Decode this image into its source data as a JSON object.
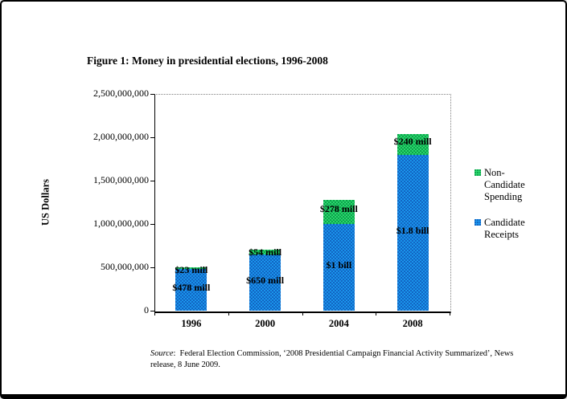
{
  "figure": {
    "title": "Figure 1: Money in presidential elections, 1996-2008"
  },
  "chart_data": {
    "type": "bar",
    "stacked": true,
    "title": "Figure 1: Money in presidential elections, 1996-2008",
    "xlabel": "",
    "ylabel": "US Dollars",
    "categories": [
      "1996",
      "2000",
      "2004",
      "2008"
    ],
    "series": [
      {
        "name": "Candidate Receipts",
        "color": "#1b9af0",
        "pattern_dot_color": "#1161c0",
        "values": [
          478000000,
          650000000,
          1000000000,
          1800000000
        ],
        "data_labels": [
          "$478 mill",
          "$650 mill",
          "$1 bill",
          "$1.8 bill"
        ]
      },
      {
        "name": "Non-Candidate Spending",
        "color": "#2edd70",
        "pattern_dot_color": "#0b9e4a",
        "values": [
          23000000,
          54000000,
          278000000,
          240000000
        ],
        "data_labels": [
          "$23 mill",
          "$54 mill",
          "$278 mill",
          "$240 mill"
        ]
      }
    ],
    "ylim": [
      0,
      2500000000
    ],
    "yticks": [
      "0",
      "500,000,000",
      "1,000,000,000",
      "1,500,000,000",
      "2,000,000,000",
      "2,500,000,000"
    ],
    "grid": false,
    "legend_position": "right"
  },
  "legend": {
    "items": [
      {
        "label": "Non-Candidate Spending",
        "color": "#2edd70",
        "dot": "#0b9e4a"
      },
      {
        "label": "Candidate Receipts",
        "color": "#1b9af0",
        "dot": "#1161c0"
      }
    ]
  },
  "source": {
    "prefix": "Source",
    "rest": ":  Federal Election Commission, ‘2008 Presidential Campaign Financial Activity Summarized’, News release, 8 June 2009."
  }
}
